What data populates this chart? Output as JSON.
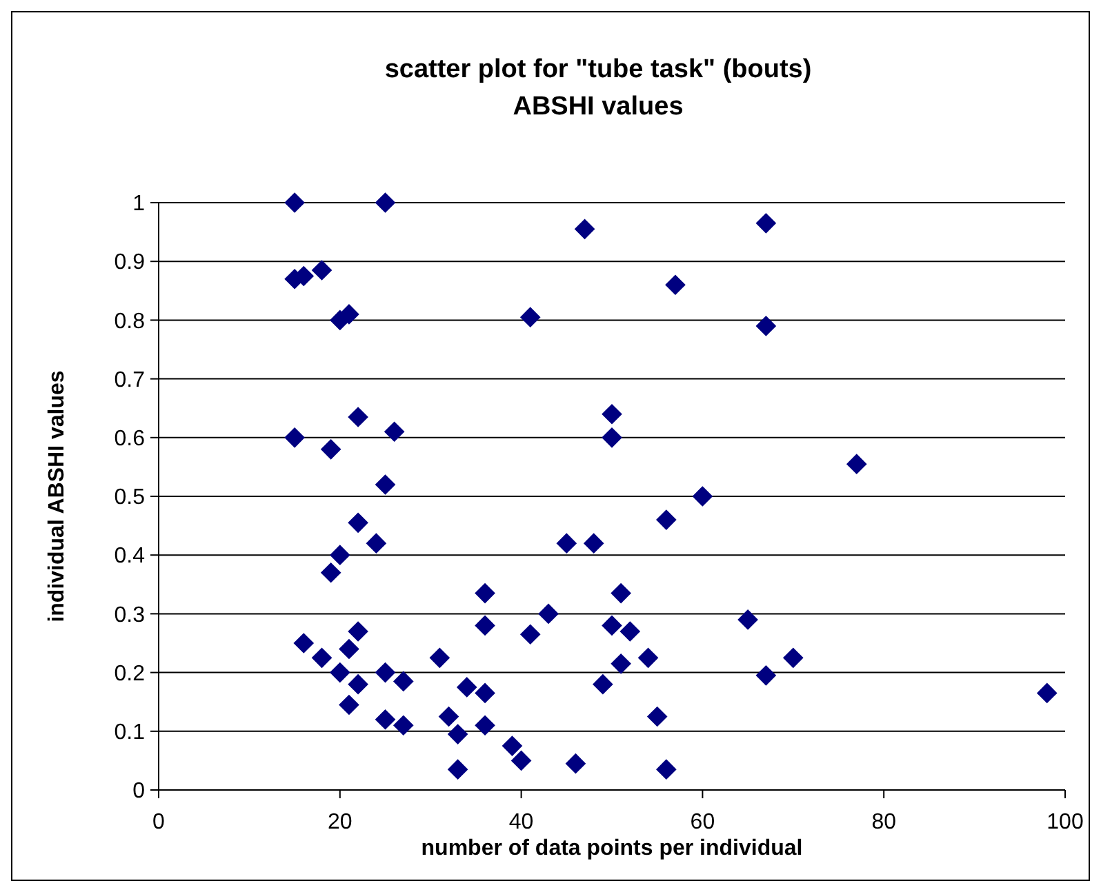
{
  "chart_data": {
    "type": "scatter",
    "title": "scatter plot for \"tube task\" (bouts)\nABSHI values",
    "xlabel": "number of data points per individual",
    "ylabel": "individual ABSHI values",
    "marker": "diamond",
    "grid": "y",
    "xlim": [
      0,
      100
    ],
    "xticks": [
      0,
      20,
      40,
      60,
      80,
      100
    ],
    "ylim": [
      0,
      1
    ],
    "yticks": [
      0,
      0.1,
      0.2,
      0.3,
      0.4,
      0.5,
      0.6,
      0.7,
      0.8,
      0.9,
      1
    ],
    "series": [
      {
        "color": "#000080",
        "x": [
          15,
          25,
          15,
          16,
          18,
          20,
          21,
          15,
          19,
          22,
          26,
          25,
          22,
          24,
          20,
          19,
          16,
          18,
          22,
          21,
          20,
          22,
          21,
          25,
          27,
          25,
          27,
          31,
          32,
          33,
          33,
          34,
          36,
          36,
          36,
          36,
          39,
          40,
          41,
          41,
          43,
          45,
          46,
          47,
          48,
          49,
          50,
          50,
          50,
          51,
          51,
          52,
          54,
          55,
          56,
          56,
          57,
          60,
          65,
          67,
          67,
          67,
          70,
          77,
          98
        ],
        "values": [
          1.0,
          1.0,
          0.87,
          0.875,
          0.885,
          0.8,
          0.81,
          0.6,
          0.58,
          0.635,
          0.61,
          0.52,
          0.455,
          0.42,
          0.4,
          0.37,
          0.25,
          0.225,
          0.27,
          0.24,
          0.2,
          0.18,
          0.145,
          0.2,
          0.185,
          0.12,
          0.11,
          0.225,
          0.125,
          0.095,
          0.035,
          0.175,
          0.165,
          0.11,
          0.335,
          0.28,
          0.075,
          0.05,
          0.265,
          0.805,
          0.3,
          0.42,
          0.045,
          0.955,
          0.42,
          0.18,
          0.64,
          0.6,
          0.28,
          0.335,
          0.215,
          0.27,
          0.225,
          0.125,
          0.46,
          0.035,
          0.86,
          0.5,
          0.29,
          0.965,
          0.79,
          0.195,
          0.225,
          0.555,
          0.165
        ]
      }
    ]
  }
}
